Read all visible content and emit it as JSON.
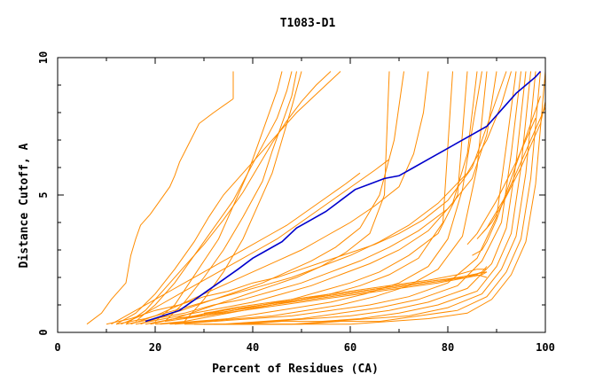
{
  "chart_data": {
    "type": "line",
    "title": "T1083-D1",
    "xlabel": "Percent of Residues (CA)",
    "ylabel": "Distance Cutoff, A",
    "xlim": [
      0,
      100
    ],
    "ylim": [
      0,
      10
    ],
    "x_ticks": [
      "0",
      "20",
      "40",
      "60",
      "80",
      "100"
    ],
    "y_ticks": [
      "0",
      "5",
      "10"
    ],
    "grid": false,
    "legend": "none",
    "colors": {
      "background_models": "#ff8c00",
      "highlight_model": "#0000cc",
      "axes": "#000000"
    },
    "highlight_series": {
      "x": [
        18,
        25,
        29,
        33,
        37,
        40,
        43,
        46,
        49,
        52,
        55,
        58,
        61,
        64,
        67,
        70,
        73,
        76,
        79,
        82,
        85,
        88,
        90,
        92,
        94,
        96,
        98,
        99
      ],
      "y": [
        0.4,
        0.8,
        1.3,
        1.8,
        2.3,
        2.7,
        3.0,
        3.3,
        3.8,
        4.1,
        4.4,
        4.8,
        5.2,
        5.4,
        5.6,
        5.7,
        6.0,
        6.3,
        6.6,
        6.9,
        7.2,
        7.5,
        7.9,
        8.3,
        8.7,
        9.0,
        9.3,
        9.5
      ]
    },
    "series": [
      {
        "x": [
          6,
          9,
          11,
          14,
          15,
          16,
          17,
          19,
          21,
          23,
          24,
          25,
          27,
          29,
          32,
          36
        ],
        "y": [
          0.3,
          0.7,
          1.2,
          1.8,
          2.8,
          3.4,
          3.9,
          4.3,
          4.8,
          5.3,
          5.7,
          6.2,
          6.9,
          7.6,
          8.0,
          8.5
        ]
      },
      {
        "x": [
          36,
          36
        ],
        "y": [
          8.5,
          9.5
        ]
      },
      {
        "x": [
          12,
          16,
          20,
          24,
          28,
          31,
          34,
          37,
          40,
          43,
          46,
          49,
          52,
          55,
          58
        ],
        "y": [
          0.3,
          0.7,
          1.4,
          2.3,
          3.3,
          4.2,
          5.0,
          5.6,
          6.2,
          6.8,
          7.4,
          8.0,
          8.5,
          9.0,
          9.5
        ]
      },
      {
        "x": [
          14,
          18,
          22,
          26,
          30,
          34,
          38,
          41,
          44,
          47,
          50,
          53,
          56
        ],
        "y": [
          0.3,
          0.8,
          1.6,
          2.4,
          3.2,
          4.1,
          5.1,
          6.0,
          6.9,
          7.7,
          8.4,
          9.0,
          9.5
        ]
      },
      {
        "x": [
          16,
          20,
          24,
          28,
          32,
          36,
          39,
          42,
          45,
          47,
          48
        ],
        "y": [
          0.4,
          1.0,
          1.8,
          2.8,
          3.8,
          4.8,
          5.8,
          6.8,
          7.8,
          8.8,
          9.5
        ]
      },
      {
        "x": [
          20,
          24,
          27,
          30,
          33,
          35,
          37,
          39,
          41,
          43,
          45,
          46
        ],
        "y": [
          0.4,
          1.0,
          1.8,
          2.6,
          3.4,
          4.2,
          5.0,
          5.8,
          6.8,
          7.8,
          8.8,
          9.5
        ]
      },
      {
        "x": [
          22,
          26,
          30,
          34,
          38,
          42,
          44,
          46,
          48,
          49
        ],
        "y": [
          0.4,
          1.1,
          2.0,
          3.0,
          4.2,
          5.5,
          6.6,
          7.6,
          8.6,
          9.5
        ]
      },
      {
        "x": [
          26,
          30,
          34,
          38,
          41,
          44,
          46,
          48,
          50
        ],
        "y": [
          0.4,
          1.2,
          2.2,
          3.4,
          4.6,
          5.8,
          7.0,
          8.2,
          9.5
        ]
      },
      {
        "x": [
          11,
          15,
          19,
          23,
          27,
          31,
          35,
          39,
          43,
          47,
          51,
          55,
          59,
          62
        ],
        "y": [
          0.3,
          0.7,
          1.1,
          1.5,
          1.9,
          2.3,
          2.7,
          3.1,
          3.5,
          3.9,
          4.4,
          4.9,
          5.4,
          5.8
        ]
      },
      {
        "x": [
          13,
          17,
          21,
          25,
          29,
          33,
          37,
          41,
          45,
          49,
          53,
          57,
          61,
          65,
          68
        ],
        "y": [
          0.3,
          0.6,
          1.0,
          1.4,
          1.8,
          2.2,
          2.6,
          3.0,
          3.4,
          3.9,
          4.4,
          4.9,
          5.4,
          5.9,
          6.3
        ]
      },
      {
        "x": [
          15,
          20,
          25,
          30,
          35,
          40,
          45,
          50,
          55,
          60,
          65,
          70,
          73,
          75,
          76
        ],
        "y": [
          0.3,
          0.6,
          1.0,
          1.4,
          1.8,
          2.2,
          2.6,
          3.0,
          3.5,
          4.0,
          4.6,
          5.3,
          6.5,
          8.0,
          9.5
        ]
      },
      {
        "x": [
          17,
          22,
          27,
          32,
          37,
          42,
          47,
          52,
          57,
          62,
          66,
          69,
          71
        ],
        "y": [
          0.3,
          0.6,
          0.9,
          1.2,
          1.5,
          1.8,
          2.2,
          2.6,
          3.1,
          3.8,
          5.0,
          7.0,
          9.5
        ]
      },
      {
        "x": [
          19,
          24,
          29,
          34,
          39,
          44,
          49,
          54,
          59,
          64,
          67,
          68
        ],
        "y": [
          0.3,
          0.5,
          0.8,
          1.1,
          1.4,
          1.7,
          2.0,
          2.4,
          2.9,
          3.6,
          5.0,
          9.5
        ]
      },
      {
        "x": [
          10,
          15,
          20,
          25,
          30,
          35,
          40,
          45,
          50,
          55,
          60,
          65,
          70,
          75,
          80,
          85,
          88,
          90,
          92
        ],
        "y": [
          0.3,
          0.5,
          0.8,
          1.0,
          1.3,
          1.5,
          1.8,
          2.0,
          2.3,
          2.6,
          2.9,
          3.2,
          3.6,
          4.1,
          4.8,
          6.0,
          7.5,
          8.5,
          9.5
        ]
      },
      {
        "x": [
          12,
          18,
          24,
          30,
          36,
          42,
          48,
          54,
          60,
          66,
          72,
          78,
          84,
          88,
          91,
          93
        ],
        "y": [
          0.3,
          0.5,
          0.8,
          1.1,
          1.4,
          1.7,
          2.0,
          2.4,
          2.8,
          3.3,
          3.9,
          4.7,
          5.8,
          7.0,
          8.3,
          9.5
        ]
      },
      {
        "x": [
          14,
          20,
          26,
          32,
          38,
          44,
          50,
          56,
          62,
          68,
          74,
          80,
          85,
          88,
          90
        ],
        "y": [
          0.3,
          0.5,
          0.7,
          1.0,
          1.2,
          1.5,
          1.8,
          2.2,
          2.6,
          3.1,
          3.7,
          4.5,
          5.6,
          7.2,
          9.5
        ]
      },
      {
        "x": [
          16,
          22,
          28,
          34,
          40,
          46,
          52,
          58,
          64,
          70,
          76,
          81,
          84,
          86
        ],
        "y": [
          0.3,
          0.5,
          0.7,
          0.9,
          1.1,
          1.4,
          1.7,
          2.1,
          2.5,
          3.0,
          3.7,
          4.7,
          6.5,
          9.5
        ]
      },
      {
        "x": [
          18,
          24,
          30,
          36,
          42,
          48,
          54,
          60,
          66,
          72,
          78,
          82,
          84
        ],
        "y": [
          0.3,
          0.5,
          0.6,
          0.8,
          1.0,
          1.2,
          1.5,
          1.8,
          2.2,
          2.8,
          3.6,
          5.0,
          9.5
        ]
      },
      {
        "x": [
          20,
          26,
          32,
          38,
          44,
          50,
          56,
          62,
          68,
          74,
          79,
          81
        ],
        "y": [
          0.3,
          0.4,
          0.6,
          0.8,
          1.0,
          1.2,
          1.4,
          1.7,
          2.1,
          2.7,
          4.0,
          9.5
        ]
      },
      {
        "x": [
          21,
          28,
          35,
          42,
          49,
          56,
          63,
          70,
          76,
          80,
          83,
          85,
          87
        ],
        "y": [
          0.3,
          0.4,
          0.5,
          0.7,
          0.9,
          1.1,
          1.4,
          1.8,
          2.4,
          3.4,
          5.2,
          7.4,
          9.5
        ]
      },
      {
        "x": [
          23,
          30,
          37,
          44,
          51,
          58,
          65,
          72,
          78,
          83,
          86,
          88
        ],
        "y": [
          0.3,
          0.4,
          0.5,
          0.6,
          0.8,
          1.0,
          1.3,
          1.7,
          2.3,
          3.5,
          6.0,
          9.5
        ]
      },
      {
        "x": [
          24,
          32,
          40,
          48,
          56,
          64,
          72,
          80,
          86,
          90,
          92,
          94
        ],
        "y": [
          0.3,
          0.4,
          0.5,
          0.6,
          0.8,
          1.0,
          1.3,
          1.8,
          2.7,
          4.2,
          6.8,
          9.5
        ]
      },
      {
        "x": [
          26,
          34,
          42,
          50,
          58,
          66,
          74,
          82,
          87,
          91,
          93,
          95
        ],
        "y": [
          0.3,
          0.3,
          0.4,
          0.5,
          0.7,
          0.9,
          1.2,
          1.7,
          2.6,
          4.0,
          6.5,
          9.5
        ]
      },
      {
        "x": [
          28,
          36,
          44,
          52,
          60,
          68,
          76,
          84,
          89,
          92,
          94,
          96
        ],
        "y": [
          0.3,
          0.3,
          0.4,
          0.5,
          0.6,
          0.8,
          1.1,
          1.6,
          2.5,
          3.8,
          6.2,
          9.5
        ]
      },
      {
        "x": [
          30,
          38,
          46,
          54,
          62,
          70,
          78,
          86,
          90,
          93,
          95,
          97
        ],
        "y": [
          0.3,
          0.3,
          0.4,
          0.4,
          0.5,
          0.7,
          1.0,
          1.5,
          2.4,
          3.6,
          6.0,
          9.5
        ]
      },
      {
        "x": [
          32,
          40,
          48,
          56,
          64,
          72,
          80,
          87,
          91,
          94,
          96,
          98
        ],
        "y": [
          0.3,
          0.3,
          0.3,
          0.4,
          0.5,
          0.6,
          0.9,
          1.4,
          2.3,
          3.5,
          5.8,
          9.5
        ]
      },
      {
        "x": [
          34,
          42,
          50,
          58,
          66,
          74,
          82,
          88,
          92,
          95,
          97,
          99
        ],
        "y": [
          0.3,
          0.3,
          0.3,
          0.4,
          0.4,
          0.6,
          0.8,
          1.3,
          2.2,
          3.4,
          5.6,
          9.5
        ]
      },
      {
        "x": [
          36,
          44,
          52,
          60,
          68,
          76,
          84,
          89,
          93,
          96,
          98,
          100
        ],
        "y": [
          0.3,
          0.3,
          0.3,
          0.3,
          0.4,
          0.5,
          0.7,
          1.2,
          2.1,
          3.3,
          5.4,
          9.5
        ]
      },
      {
        "x": [
          22,
          30,
          38,
          46,
          54,
          62,
          70,
          78,
          84,
          87,
          88
        ],
        "y": [
          0.4,
          0.6,
          0.8,
          1.0,
          1.2,
          1.4,
          1.6,
          1.8,
          2.0,
          2.2,
          2.4
        ]
      },
      {
        "x": [
          24,
          32,
          40,
          48,
          56,
          64,
          72,
          80,
          85,
          88
        ],
        "y": [
          0.5,
          0.7,
          0.9,
          1.1,
          1.3,
          1.5,
          1.7,
          1.9,
          2.1,
          2.2
        ]
      },
      {
        "x": [
          26,
          34,
          42,
          50,
          58,
          66,
          74,
          82,
          86,
          88
        ],
        "y": [
          0.5,
          0.8,
          1.0,
          1.2,
          1.4,
          1.6,
          1.8,
          2.0,
          2.1,
          2.0
        ]
      },
      {
        "x": [
          28,
          36,
          44,
          52,
          60,
          68,
          76,
          82,
          86,
          88
        ],
        "y": [
          0.6,
          0.9,
          1.1,
          1.3,
          1.5,
          1.7,
          1.9,
          2.1,
          2.3,
          2.3
        ]
      },
      {
        "x": [
          30,
          38,
          46,
          54,
          62,
          70,
          78,
          84,
          87,
          88
        ],
        "y": [
          0.7,
          0.9,
          1.1,
          1.3,
          1.5,
          1.7,
          1.9,
          2.0,
          2.1,
          2.2
        ]
      },
      {
        "x": [
          85,
          87,
          88,
          89,
          90,
          91,
          92,
          93,
          94,
          95,
          96,
          97,
          98,
          99
        ],
        "y": [
          2.8,
          3.0,
          3.3,
          3.7,
          4.1,
          4.6,
          5.1,
          5.6,
          6.1,
          6.6,
          7.1,
          7.6,
          8.1,
          8.6
        ]
      },
      {
        "x": [
          86,
          88,
          90,
          92,
          94,
          96,
          98,
          100
        ],
        "y": [
          3.4,
          3.8,
          4.4,
          5.0,
          5.8,
          6.6,
          7.4,
          8.2
        ]
      },
      {
        "x": [
          84,
          86,
          88,
          90,
          92,
          94,
          96,
          98
        ],
        "y": [
          3.2,
          3.6,
          4.2,
          4.8,
          5.5,
          6.2,
          7.0,
          7.8
        ]
      },
      {
        "x": [
          87,
          89,
          91,
          93,
          95,
          97,
          99,
          100
        ],
        "y": [
          3.6,
          4.0,
          4.6,
          5.3,
          6.0,
          6.8,
          7.6,
          8.4
        ]
      }
    ]
  }
}
